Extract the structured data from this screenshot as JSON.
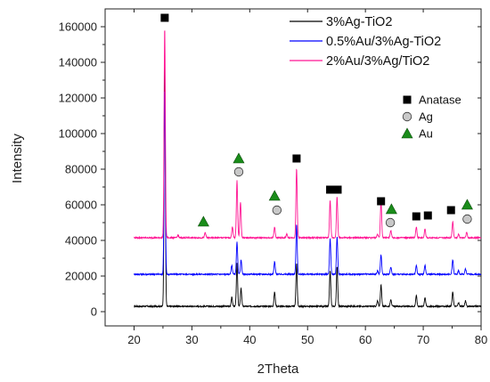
{
  "chart_data": {
    "type": "line",
    "xlabel": "2Theta",
    "ylabel": "Intensity",
    "xlim": [
      15,
      80
    ],
    "ylim": [
      -8000,
      170000
    ],
    "x_ticks": [
      20,
      30,
      40,
      50,
      60,
      70,
      80
    ],
    "y_ticks": [
      0,
      20000,
      40000,
      60000,
      80000,
      100000,
      120000,
      140000,
      160000
    ],
    "grid": false,
    "legend_position": "top-right",
    "series": [
      {
        "name": "3%Ag-TiO2",
        "color": "#000000",
        "baseline": 3000,
        "peaks": [
          [
            25.3,
            136000
          ],
          [
            36.9,
            5000
          ],
          [
            37.8,
            24000
          ],
          [
            38.5,
            10000
          ],
          [
            44.3,
            8000
          ],
          [
            48.1,
            24000
          ],
          [
            53.9,
            20000
          ],
          [
            55.1,
            22000
          ],
          [
            62.1,
            3000
          ],
          [
            62.7,
            12000
          ],
          [
            64.4,
            4000
          ],
          [
            68.8,
            6000
          ],
          [
            70.3,
            5000
          ],
          [
            75.1,
            8000
          ],
          [
            76.1,
            2000
          ],
          [
            77.3,
            3000
          ]
        ]
      },
      {
        "name": "0.5%Au/3%Ag-TiO2",
        "color": "#0000ff",
        "baseline": 21000,
        "peaks": [
          [
            25.3,
            104000
          ],
          [
            36.9,
            5000
          ],
          [
            37.8,
            18000
          ],
          [
            38.5,
            8000
          ],
          [
            44.3,
            7000
          ],
          [
            48.1,
            28000
          ],
          [
            53.9,
            20000
          ],
          [
            55.1,
            21000
          ],
          [
            62.1,
            2000
          ],
          [
            62.7,
            11000
          ],
          [
            64.4,
            4000
          ],
          [
            68.8,
            5000
          ],
          [
            70.3,
            5000
          ],
          [
            75.1,
            8000
          ],
          [
            76.1,
            2000
          ],
          [
            77.3,
            3000
          ]
        ]
      },
      {
        "name": "2%Au/3%Ag/TiO2",
        "color": "#ff1493",
        "baseline": 41500,
        "peaks": [
          [
            25.3,
            118000
          ],
          [
            27.6,
            1500
          ],
          [
            32.3,
            3000
          ],
          [
            37.0,
            6000
          ],
          [
            37.8,
            32000
          ],
          [
            38.4,
            20000
          ],
          [
            44.3,
            6000
          ],
          [
            46.4,
            2000
          ],
          [
            48.1,
            39000
          ],
          [
            53.9,
            21000
          ],
          [
            55.1,
            23000
          ],
          [
            62.1,
            2000
          ],
          [
            62.7,
            21000
          ],
          [
            64.4,
            4000
          ],
          [
            68.8,
            6000
          ],
          [
            70.3,
            5000
          ],
          [
            75.1,
            9000
          ],
          [
            76.1,
            2000
          ],
          [
            77.5,
            3000
          ]
        ]
      }
    ],
    "phases": [
      {
        "name": "Anatase",
        "symbol": "square",
        "color": "#000000"
      },
      {
        "name": "Ag",
        "symbol": "circle",
        "color": "#c8c8c8"
      },
      {
        "name": "Au",
        "symbol": "triangle",
        "color": "#1a8c1a"
      }
    ],
    "phase_markers": [
      {
        "phase": "Anatase",
        "x": 25.3,
        "y": 165000
      },
      {
        "phase": "Anatase",
        "x": 48.1,
        "y": 86000
      },
      {
        "phase": "Anatase",
        "x": 53.9,
        "y": 68500
      },
      {
        "phase": "Anatase",
        "x": 55.2,
        "y": 68500
      },
      {
        "phase": "Anatase",
        "x": 62.7,
        "y": 62000
      },
      {
        "phase": "Anatase",
        "x": 68.8,
        "y": 53500
      },
      {
        "phase": "Anatase",
        "x": 70.8,
        "y": 54000
      },
      {
        "phase": "Anatase",
        "x": 74.8,
        "y": 57000
      },
      {
        "phase": "Ag",
        "x": 38.1,
        "y": 78500
      },
      {
        "phase": "Ag",
        "x": 44.7,
        "y": 57000
      },
      {
        "phase": "Ag",
        "x": 64.3,
        "y": 50000
      },
      {
        "phase": "Ag",
        "x": 77.6,
        "y": 52000
      },
      {
        "phase": "Au",
        "x": 32.0,
        "y": 50500
      },
      {
        "phase": "Au",
        "x": 38.1,
        "y": 86000
      },
      {
        "phase": "Au",
        "x": 44.3,
        "y": 65000
      },
      {
        "phase": "Au",
        "x": 64.5,
        "y": 57500
      },
      {
        "phase": "Au",
        "x": 77.6,
        "y": 60000
      }
    ]
  }
}
